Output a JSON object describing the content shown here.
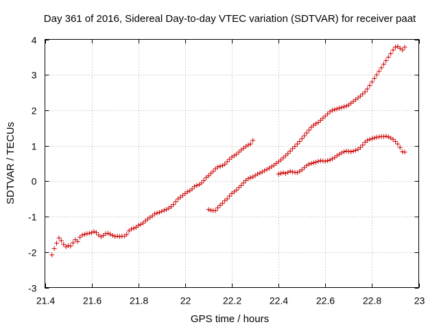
{
  "chart_data": {
    "type": "scatter",
    "title": "Day 361 of 2016, Sidereal Day-to-day VTEC variation (SDTVAR) for receiver paat",
    "xlabel": "GPS time / hours",
    "ylabel": "SDTVAR / TECUs",
    "xlim": [
      21.4,
      23.0
    ],
    "ylim": [
      -3,
      4
    ],
    "xticks": [
      21.4,
      21.6,
      21.8,
      22.0,
      22.2,
      22.4,
      22.6,
      22.8,
      23.0
    ],
    "xtick_labels": [
      "21.4",
      "21.6",
      "21.8",
      "22",
      "22.2",
      "22.4",
      "22.6",
      "22.8",
      "23"
    ],
    "yticks": [
      -3,
      -2,
      -1,
      0,
      1,
      2,
      3,
      4
    ],
    "ytick_labels": [
      "-3",
      "-2",
      "-1",
      "0",
      "1",
      "2",
      "3",
      "4"
    ],
    "grid": true,
    "marker": "+",
    "marker_color": "#cc0000",
    "series": [
      {
        "segments": [
          {
            "x": [
              21.43,
              21.44,
              21.45,
              21.46,
              21.47,
              21.48,
              21.49,
              21.5,
              21.51,
              21.52,
              21.53,
              21.54,
              21.55,
              21.56,
              21.57,
              21.58,
              21.59,
              21.6,
              21.61,
              21.62,
              21.63,
              21.64,
              21.65,
              21.66,
              21.67,
              21.68,
              21.69,
              21.7,
              21.71,
              21.72,
              21.73,
              21.74,
              21.75,
              21.76,
              21.77,
              21.78,
              21.79,
              21.8,
              21.81,
              21.82,
              21.83,
              21.84,
              21.85,
              21.86,
              21.87,
              21.88,
              21.89,
              21.9,
              21.91,
              21.92,
              21.93,
              21.94,
              21.95,
              21.96,
              21.97,
              21.98,
              21.99,
              22.0,
              22.01,
              22.02,
              22.03,
              22.04,
              22.05,
              22.06,
              22.07,
              22.08,
              22.09,
              22.1,
              22.11,
              22.12,
              22.13,
              22.14,
              22.15,
              22.16,
              22.17,
              22.18,
              22.19,
              22.2,
              22.21,
              22.22,
              22.23,
              22.24,
              22.25,
              22.26,
              22.27,
              22.28,
              22.29
            ],
            "y": [
              -2.08,
              -1.9,
              -1.75,
              -1.6,
              -1.68,
              -1.78,
              -1.85,
              -1.82,
              -1.83,
              -1.74,
              -1.65,
              -1.7,
              -1.58,
              -1.52,
              -1.5,
              -1.48,
              -1.47,
              -1.45,
              -1.42,
              -1.45,
              -1.52,
              -1.57,
              -1.53,
              -1.48,
              -1.47,
              -1.5,
              -1.53,
              -1.56,
              -1.55,
              -1.56,
              -1.55,
              -1.55,
              -1.5,
              -1.4,
              -1.35,
              -1.33,
              -1.3,
              -1.25,
              -1.22,
              -1.18,
              -1.12,
              -1.07,
              -1.02,
              -0.98,
              -0.92,
              -0.9,
              -0.88,
              -0.85,
              -0.82,
              -0.8,
              -0.76,
              -0.72,
              -0.66,
              -0.58,
              -0.5,
              -0.45,
              -0.4,
              -0.35,
              -0.3,
              -0.27,
              -0.22,
              -0.15,
              -0.12,
              -0.1,
              -0.05,
              0.02,
              0.1,
              0.15,
              0.22,
              0.28,
              0.35,
              0.4,
              0.42,
              0.44,
              0.48,
              0.55,
              0.62,
              0.68,
              0.72,
              0.76,
              0.82,
              0.88,
              0.93,
              0.98,
              1.02,
              1.05,
              1.15
            ]
          },
          {
            "x": [
              22.1,
              22.11,
              22.12,
              22.13,
              22.14,
              22.15,
              22.16,
              22.17,
              22.18,
              22.19,
              22.2,
              22.21,
              22.22,
              22.23,
              22.24,
              22.25,
              22.26,
              22.27,
              22.28,
              22.29,
              22.3,
              22.31,
              22.32,
              22.33,
              22.34,
              22.35,
              22.36,
              22.37,
              22.38,
              22.39,
              22.4,
              22.41,
              22.42,
              22.43,
              22.44,
              22.45,
              22.46,
              22.47,
              22.48,
              22.49,
              22.5,
              22.51,
              22.52,
              22.53,
              22.54,
              22.55,
              22.56,
              22.57,
              22.58,
              22.59,
              22.6,
              22.61,
              22.62,
              22.63,
              22.64,
              22.65,
              22.66,
              22.67,
              22.68,
              22.69,
              22.7,
              22.71,
              22.72,
              22.73,
              22.74,
              22.75,
              22.76,
              22.77,
              22.78,
              22.79,
              22.8,
              22.81,
              22.82,
              22.83,
              22.84,
              22.85,
              22.86,
              22.87,
              22.88,
              22.89,
              22.9,
              22.91,
              22.92,
              22.93,
              22.94
            ],
            "y": [
              -0.8,
              -0.82,
              -0.83,
              -0.83,
              -0.75,
              -0.68,
              -0.62,
              -0.55,
              -0.5,
              -0.42,
              -0.35,
              -0.3,
              -0.25,
              -0.18,
              -0.12,
              -0.05,
              0.02,
              0.07,
              0.1,
              0.12,
              0.16,
              0.2,
              0.23,
              0.26,
              0.3,
              0.33,
              0.37,
              0.41,
              0.45,
              0.5,
              0.55,
              0.6,
              0.66,
              0.72,
              0.78,
              0.85,
              0.92,
              0.98,
              1.05,
              1.12,
              1.2,
              1.28,
              1.36,
              1.44,
              1.52,
              1.58,
              1.62,
              1.66,
              1.72,
              1.78,
              1.84,
              1.9,
              1.96,
              2.0,
              2.02,
              2.04,
              2.06,
              2.08,
              2.1,
              2.12,
              2.15,
              2.2,
              2.25,
              2.3,
              2.35,
              2.4,
              2.46,
              2.52,
              2.6,
              2.7,
              2.8,
              2.9,
              3.0,
              3.1,
              3.2,
              3.3,
              3.4,
              3.5,
              3.6,
              3.7,
              3.78,
              3.8,
              3.75,
              3.7,
              3.78
            ]
          },
          {
            "x": [
              22.4,
              22.41,
              22.42,
              22.43,
              22.44,
              22.45,
              22.46,
              22.47,
              22.48,
              22.49,
              22.5,
              22.51,
              22.52,
              22.53,
              22.54,
              22.55,
              22.56,
              22.57,
              22.58,
              22.59,
              22.6,
              22.61,
              22.62,
              22.63,
              22.64,
              22.65,
              22.66,
              22.67,
              22.68,
              22.69,
              22.7,
              22.71,
              22.72,
              22.73,
              22.74,
              22.75,
              22.76,
              22.77,
              22.78,
              22.79,
              22.8,
              22.81,
              22.82,
              22.83,
              22.84,
              22.85,
              22.86,
              22.87,
              22.88,
              22.89,
              22.9,
              22.91,
              22.92,
              22.93,
              22.94
            ],
            "y": [
              0.2,
              0.22,
              0.24,
              0.22,
              0.25,
              0.28,
              0.26,
              0.25,
              0.24,
              0.28,
              0.32,
              0.38,
              0.44,
              0.48,
              0.5,
              0.52,
              0.54,
              0.56,
              0.58,
              0.57,
              0.56,
              0.58,
              0.6,
              0.63,
              0.67,
              0.72,
              0.76,
              0.8,
              0.83,
              0.85,
              0.84,
              0.83,
              0.85,
              0.87,
              0.9,
              0.95,
              1.02,
              1.1,
              1.15,
              1.18,
              1.2,
              1.22,
              1.24,
              1.25,
              1.26,
              1.26,
              1.27,
              1.25,
              1.22,
              1.18,
              1.12,
              1.05,
              0.95,
              0.83,
              0.82
            ]
          }
        ]
      }
    ]
  }
}
